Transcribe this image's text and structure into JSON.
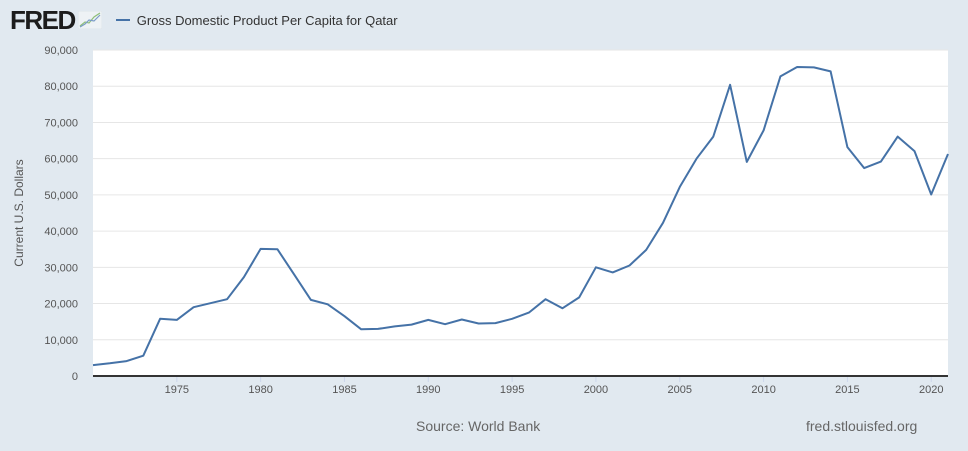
{
  "header": {
    "logo": "FRED",
    "legend_label": "Gross Domestic Product Per Capita for Qatar"
  },
  "footer": {
    "source": "Source: World Bank",
    "site": "fred.stlouisfed.org"
  },
  "colors": {
    "series": "#4572a7",
    "background": "#e1e9f0",
    "plot": "#ffffff",
    "grid": "#e6e6e6"
  },
  "chart_data": {
    "type": "line",
    "title": "Gross Domestic Product Per Capita for Qatar",
    "xlabel": "",
    "ylabel": "Current U.S. Dollars",
    "xlim": [
      1970,
      2021
    ],
    "ylim": [
      0,
      90000
    ],
    "grid": true,
    "legend": "top-left",
    "x_ticks": [
      1975,
      1980,
      1985,
      1990,
      1995,
      2000,
      2005,
      2010,
      2015,
      2020
    ],
    "x_tick_labels": [
      "1975",
      "1980",
      "1985",
      "1990",
      "1995",
      "2000",
      "2005",
      "2010",
      "2015",
      "2020"
    ],
    "y_ticks": [
      0,
      10000,
      20000,
      30000,
      40000,
      50000,
      60000,
      70000,
      80000,
      90000
    ],
    "y_tick_labels": [
      "0",
      "10,000",
      "20,000",
      "30,000",
      "40,000",
      "50,000",
      "60,000",
      "70,000",
      "80,000",
      "90,000"
    ],
    "series": [
      {
        "name": "Gross Domestic Product Per Capita for Qatar",
        "x": [
          1970,
          1971,
          1972,
          1973,
          1974,
          1975,
          1976,
          1977,
          1978,
          1979,
          1980,
          1981,
          1982,
          1983,
          1984,
          1985,
          1986,
          1987,
          1988,
          1989,
          1990,
          1991,
          1992,
          1993,
          1994,
          1995,
          1996,
          1997,
          1998,
          1999,
          2000,
          2001,
          2002,
          2003,
          2004,
          2005,
          2006,
          2007,
          2008,
          2009,
          2010,
          2011,
          2012,
          2013,
          2014,
          2015,
          2016,
          2017,
          2018,
          2019,
          2020,
          2021
        ],
        "values": [
          3000,
          3500,
          4100,
          5600,
          15800,
          15500,
          19000,
          20100,
          21200,
          27300,
          35100,
          35000,
          28000,
          21000,
          19800,
          16500,
          12900,
          13000,
          13700,
          14200,
          15500,
          14300,
          15600,
          14500,
          14600,
          15800,
          17500,
          21200,
          18700,
          21700,
          30000,
          28600,
          30500,
          34800,
          42300,
          52200,
          60000,
          66100,
          80400,
          59100,
          67800,
          82700,
          85300,
          85200,
          84100,
          63200,
          57400,
          59200,
          66100,
          62100,
          50100,
          61300
        ]
      }
    ],
    "source": "Source: World Bank"
  }
}
